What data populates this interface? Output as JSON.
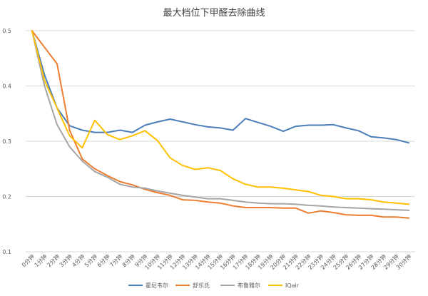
{
  "chart_data": {
    "type": "line",
    "title": "最大档位下甲醛去除曲线",
    "xlabel": "",
    "ylabel": "",
    "ylim": [
      0.1,
      0.5
    ],
    "yticks": [
      "0.1",
      "0.2",
      "0.3",
      "0.4",
      "0.5"
    ],
    "categories": [
      "0分钟",
      "1分钟",
      "2分钟",
      "3分钟",
      "4分钟",
      "5分钟",
      "6分钟",
      "7分钟",
      "8分钟",
      "9分钟",
      "10分钟",
      "11分钟",
      "12分钟",
      "13分钟",
      "14分钟",
      "15分钟",
      "16分钟",
      "17分钟",
      "18分钟",
      "19分钟",
      "20分钟",
      "21分钟",
      "22分钟",
      "23分钟",
      "24分钟",
      "25分钟",
      "26分钟",
      "27分钟",
      "28分钟",
      "29分钟",
      "30分钟"
    ],
    "grid": true,
    "legend_position": "bottom",
    "series": [
      {
        "name": "霍尼韦尔",
        "color": "#4a7ebb",
        "values": [
          0.5,
          0.42,
          0.36,
          0.328,
          0.32,
          0.316,
          0.316,
          0.32,
          0.316,
          0.329,
          0.335,
          0.34,
          0.335,
          0.33,
          0.326,
          0.324,
          0.32,
          0.341,
          0.334,
          0.327,
          0.318,
          0.327,
          0.329,
          0.329,
          0.33,
          0.324,
          0.319,
          0.308,
          0.306,
          0.303,
          0.297
        ]
      },
      {
        "name": "舒乐氏",
        "color": "#ec7d31",
        "values": [
          0.5,
          0.47,
          0.44,
          0.32,
          0.268,
          0.25,
          0.238,
          0.227,
          0.221,
          0.213,
          0.207,
          0.202,
          0.194,
          0.193,
          0.19,
          0.188,
          0.183,
          0.18,
          0.18,
          0.18,
          0.179,
          0.179,
          0.17,
          0.174,
          0.171,
          0.167,
          0.166,
          0.166,
          0.163,
          0.163,
          0.161
        ]
      },
      {
        "name": "布鲁雅尔",
        "color": "#a5a5a5",
        "values": [
          0.5,
          0.4,
          0.33,
          0.29,
          0.264,
          0.245,
          0.235,
          0.222,
          0.217,
          0.215,
          0.21,
          0.206,
          0.202,
          0.199,
          0.196,
          0.196,
          0.193,
          0.19,
          0.188,
          0.187,
          0.187,
          0.186,
          0.184,
          0.183,
          0.181,
          0.18,
          0.179,
          0.178,
          0.177,
          0.176,
          0.175
        ]
      },
      {
        "name": "IQair",
        "color": "#ffc000",
        "values": [
          0.5,
          0.41,
          0.36,
          0.31,
          0.288,
          0.338,
          0.312,
          0.303,
          0.31,
          0.319,
          0.301,
          0.27,
          0.256,
          0.249,
          0.252,
          0.247,
          0.232,
          0.222,
          0.217,
          0.217,
          0.215,
          0.212,
          0.209,
          0.202,
          0.2,
          0.196,
          0.196,
          0.194,
          0.19,
          0.188,
          0.186
        ]
      }
    ]
  }
}
